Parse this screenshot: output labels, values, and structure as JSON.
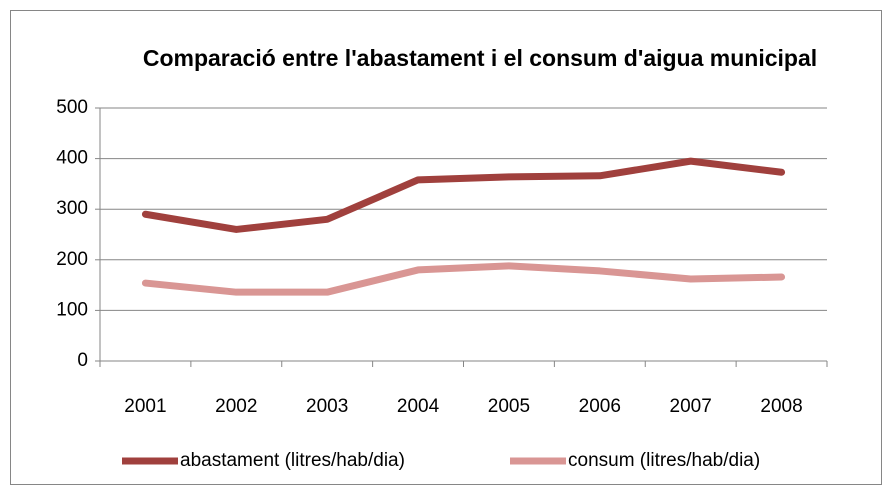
{
  "chart_data": {
    "type": "line",
    "title": "Comparació entre l'abastament i el consum d'aigua municipal",
    "categories": [
      "2001",
      "2002",
      "2003",
      "2004",
      "2005",
      "2006",
      "2007",
      "2008"
    ],
    "series": [
      {
        "name": "abastament (litres/hab/dia)",
        "color": "#a0403d",
        "values": [
          290,
          260,
          280,
          358,
          364,
          366,
          395,
          373
        ]
      },
      {
        "name": "consum (litres/hab/dia)",
        "color": "#d99694",
        "values": [
          154,
          136,
          136,
          180,
          188,
          178,
          162,
          166
        ]
      }
    ],
    "ylim": [
      0,
      500
    ],
    "yticks": [
      0,
      100,
      200,
      300,
      400,
      500
    ],
    "grid": true,
    "legend": "bottom"
  }
}
